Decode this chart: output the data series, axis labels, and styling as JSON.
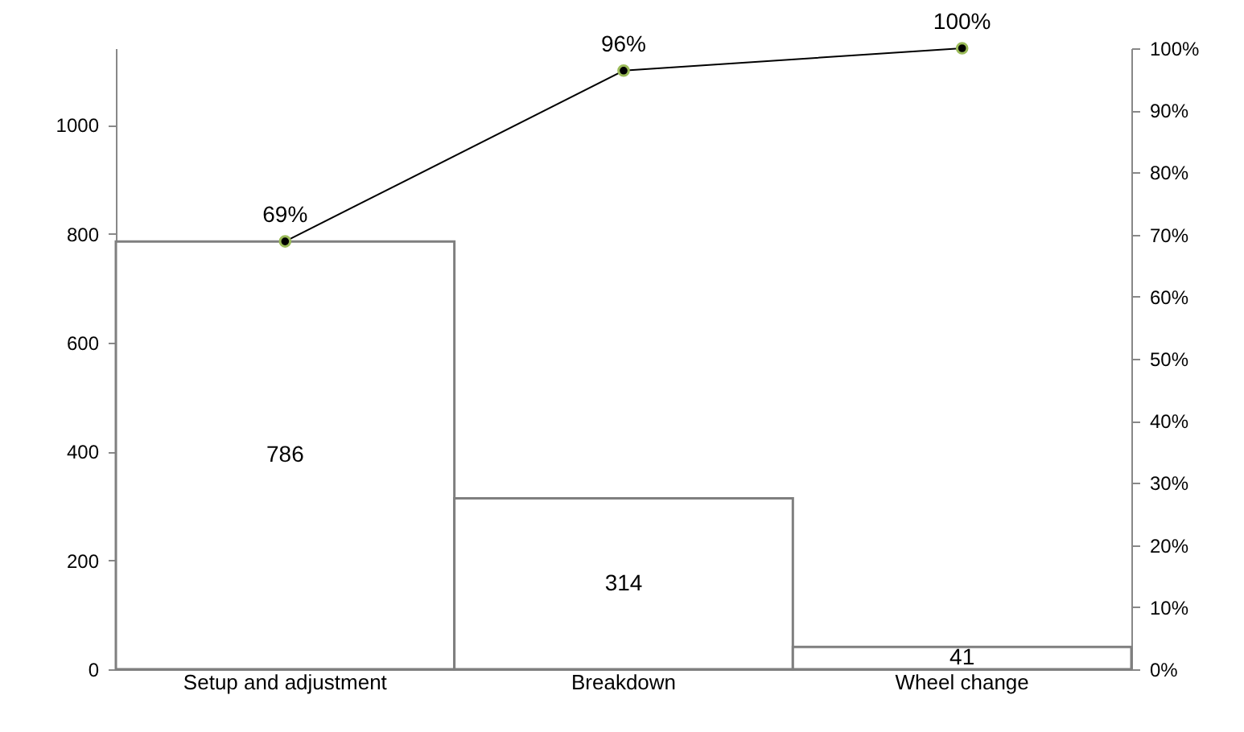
{
  "chart_data": {
    "type": "bar",
    "categories": [
      "Setup and adjustment",
      "Breakdown",
      "Wheel change"
    ],
    "series": [
      {
        "color": "#ffffff",
        "values": [
          786,
          314,
          41
        ],
        "value_labels": [
          "786",
          "314",
          "41"
        ]
      },
      {
        "type": "line",
        "axis": "y2",
        "color": "#000000",
        "values": [
          68.9,
          96.4,
          100
        ],
        "value_labels": [
          "69%",
          "96%",
          "100%"
        ]
      }
    ],
    "ylim": [
      0,
      1141
    ],
    "yticks": [
      0,
      200,
      400,
      600,
      800,
      1000
    ],
    "y2lim": [
      0,
      100
    ],
    "y2ticks": [
      {
        "value": 0,
        "label": "0%"
      },
      {
        "value": 10,
        "label": "10%"
      },
      {
        "value": 20,
        "label": "20%"
      },
      {
        "value": 30,
        "label": "30%"
      },
      {
        "value": 40,
        "label": "40%"
      },
      {
        "value": 50,
        "label": "50%"
      },
      {
        "value": 60,
        "label": "60%"
      },
      {
        "value": 70,
        "label": "70%"
      },
      {
        "value": 80,
        "label": "80%"
      },
      {
        "value": 90,
        "label": "90%"
      },
      {
        "value": 100,
        "label": "100%"
      }
    ],
    "grid": false,
    "legend": false,
    "marker": "circle"
  }
}
